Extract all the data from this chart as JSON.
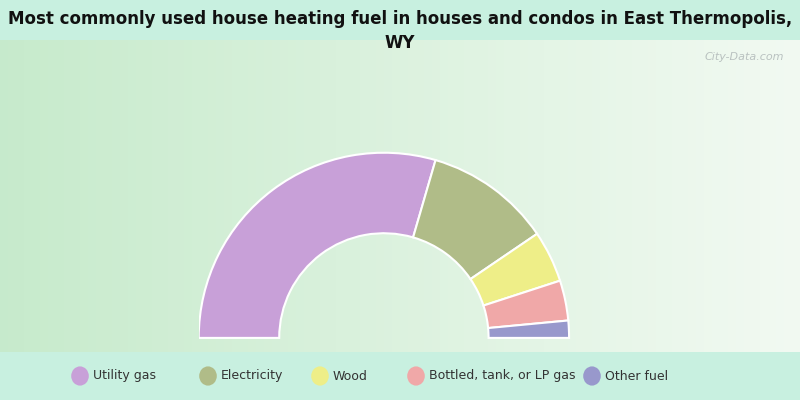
{
  "title": "Most commonly used house heating fuel in houses and condos in East Thermopolis,\nWY",
  "segments": [
    {
      "label": "Utility gas",
      "value": 59,
      "color": "#c8a0d8"
    },
    {
      "label": "Electricity",
      "value": 22,
      "color": "#b0bc88"
    },
    {
      "label": "Wood",
      "value": 9,
      "color": "#eeee88"
    },
    {
      "label": "Bottled, tank, or LP gas",
      "value": 7,
      "color": "#f0a8a8"
    },
    {
      "label": "Other fuel",
      "value": 3,
      "color": "#9898cc"
    }
  ],
  "bg_color": "#c8f0e0",
  "chart_bg_left": "#b8e0c0",
  "chart_bg_right": "#e8f0e8",
  "title_fontsize": 12,
  "legend_fontsize": 9,
  "watermark": "City-Data.com"
}
